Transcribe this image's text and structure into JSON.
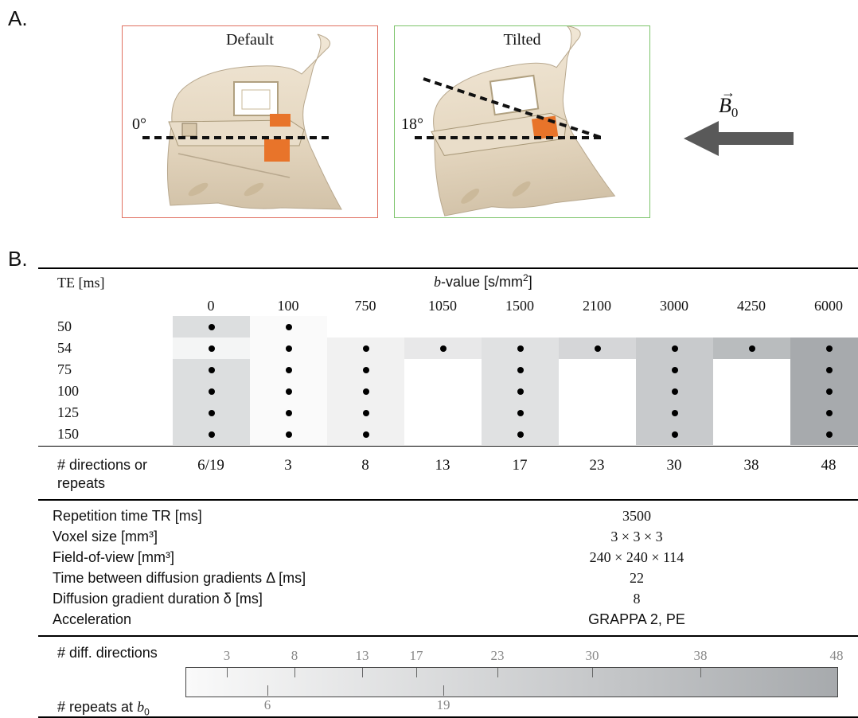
{
  "panel_a": {
    "label": "A.",
    "default_title": "Default",
    "tilted_title": "Tilted",
    "default_angle": "0°",
    "tilted_angle": "18°",
    "field_label": "B",
    "field_subscript": "0",
    "default_border": "#e07060",
    "tilted_border": "#7cc46a"
  },
  "panel_b": {
    "label": "B.",
    "te_header": "TE [ms]",
    "bvalue_header_b": "b",
    "bvalue_header_rest": "-value [s/mm",
    "bvalue_header_sup": "2",
    "bvalue_header_close": "]",
    "bvalues": [
      "0",
      "100",
      "750",
      "1050",
      "1500",
      "2100",
      "3000",
      "4250",
      "6000"
    ],
    "te_values": [
      "50",
      "54",
      "75",
      "100",
      "125",
      "150"
    ],
    "directions_label_1": "# directions or",
    "directions_label_2": "repeats",
    "directions": [
      "6/19",
      "3",
      "8",
      "13",
      "17",
      "23",
      "30",
      "38",
      "48"
    ],
    "params": [
      {
        "label": "Repetition time TR [ms]",
        "value": "3500"
      },
      {
        "label": "Voxel size [mm³]",
        "value": "3 × 3 × 3"
      },
      {
        "label": "Field-of-view [mm³]",
        "value": "240 × 240 × 114"
      },
      {
        "label": "Time between diffusion gradients Δ [ms]",
        "value": "22"
      },
      {
        "label": "Diffusion gradient duration δ [ms]",
        "value": "8"
      },
      {
        "label": "Acceleration",
        "value": "GRAPPA 2, PE"
      }
    ],
    "colorbar": {
      "top_label": "# diff. directions",
      "bottom_label_text": "# repeats at ",
      "bottom_label_b": "b",
      "bottom_label_sub": "0",
      "top_ticks": [
        "3",
        "8",
        "13",
        "17",
        "23",
        "30",
        "38",
        "48"
      ],
      "bottom_ticks": [
        "6",
        "19"
      ]
    }
  },
  "chart_data": {
    "type": "table",
    "columns": [
      "0",
      "100",
      "750",
      "1050",
      "1500",
      "2100",
      "3000",
      "4250",
      "6000"
    ],
    "rows": [
      "50",
      "54",
      "75",
      "100",
      "125",
      "150"
    ],
    "acquired": [
      [
        1,
        1,
        0,
        0,
        0,
        0,
        0,
        0,
        0
      ],
      [
        1,
        1,
        1,
        1,
        1,
        1,
        1,
        1,
        1
      ],
      [
        1,
        1,
        1,
        0,
        1,
        0,
        1,
        0,
        1
      ],
      [
        1,
        1,
        1,
        0,
        1,
        0,
        1,
        0,
        1
      ],
      [
        1,
        1,
        1,
        0,
        1,
        0,
        1,
        0,
        1
      ],
      [
        1,
        1,
        1,
        0,
        1,
        0,
        1,
        0,
        1
      ]
    ],
    "directions": [
      "6/19",
      "3",
      "8",
      "13",
      "17",
      "23",
      "30",
      "38",
      "48"
    ]
  }
}
